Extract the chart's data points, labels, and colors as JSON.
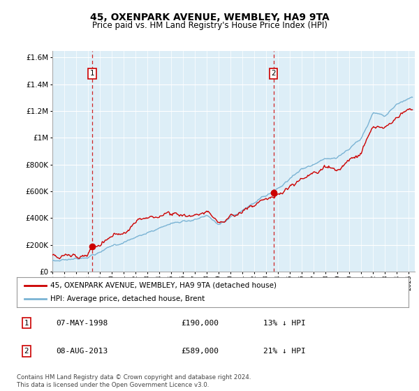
{
  "title": "45, OXENPARK AVENUE, WEMBLEY, HA9 9TA",
  "subtitle": "Price paid vs. HM Land Registry's House Price Index (HPI)",
  "legend_line1": "45, OXENPARK AVENUE, WEMBLEY, HA9 9TA (detached house)",
  "legend_line2": "HPI: Average price, detached house, Brent",
  "note": "Contains HM Land Registry data © Crown copyright and database right 2024.\nThis data is licensed under the Open Government Licence v3.0.",
  "sale1_label": "1",
  "sale1_date": "07-MAY-1998",
  "sale1_price": "£190,000",
  "sale1_hpi": "13% ↓ HPI",
  "sale1_x": 1998.35,
  "sale1_y": 190000,
  "sale2_label": "2",
  "sale2_date": "08-AUG-2013",
  "sale2_price": "£589,000",
  "sale2_hpi": "21% ↓ HPI",
  "sale2_x": 2013.6,
  "sale2_y": 589000,
  "hpi_color": "#7ab3d4",
  "price_color": "#cc0000",
  "dashed_color": "#cc0000",
  "ylim": [
    0,
    1650000
  ],
  "xlim": [
    1995.0,
    2025.5
  ],
  "bg_color": "#ddeef7",
  "plot_bg": "#ddeef7"
}
